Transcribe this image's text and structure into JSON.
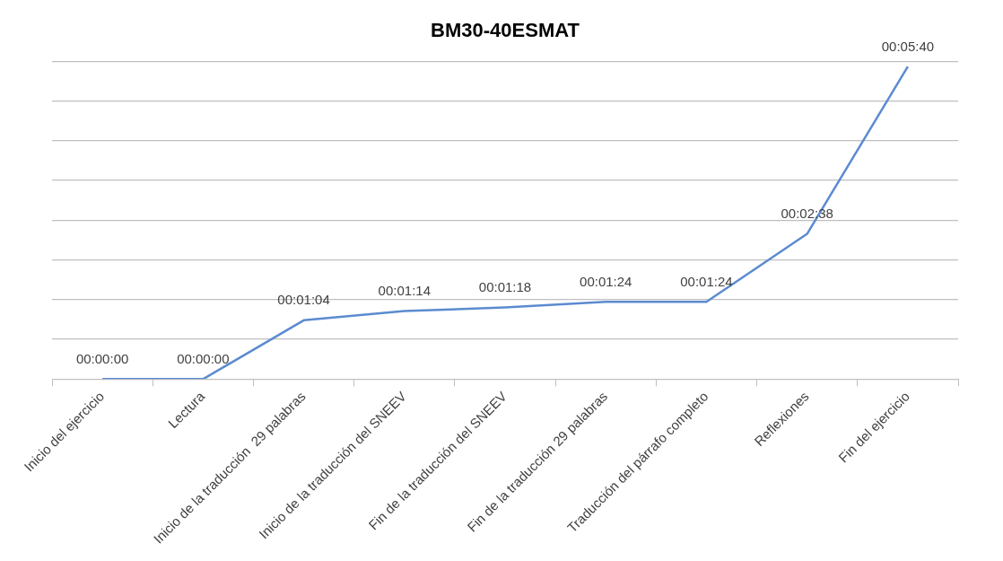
{
  "chart_data": {
    "type": "line",
    "title": "BM30-40ESMAT",
    "categories": [
      "Inicio del ejercicio",
      "Lectura",
      "Inicio de la traducción  29 palabras",
      "Inicio de la traducción del SNEEV",
      "Fin de la traducción del SNEEV",
      "Fin de la traducción 29 palabras",
      "Traducción del párrafo completo",
      "Reflexiones",
      "Fin del ejercicio"
    ],
    "series": [
      {
        "color": "#5b8bd0",
        "values": [
          0,
          0,
          64,
          74,
          78,
          84,
          84,
          158,
          340
        ],
        "value_labels": [
          "00:00:00",
          "00:00:00",
          "00:01:04",
          "00:01:14",
          "00:01:18",
          "00:01:24",
          "00:01:24",
          "00:02:38",
          "00:05:40"
        ]
      }
    ],
    "ylim": [
      0,
      345.6
    ],
    "yticks": [
      {
        "value": 0,
        "label": null
      },
      {
        "value": 43.2,
        "label": null
      },
      {
        "value": 86.4,
        "label": null
      },
      {
        "value": 129.6,
        "label": null
      },
      {
        "value": 172.8,
        "label": null
      },
      {
        "value": 216,
        "label": null
      },
      {
        "value": 259.2,
        "label": null
      },
      {
        "value": 302.4,
        "label": null
      },
      {
        "value": 345.6,
        "label": null
      }
    ],
    "tick_labels": "x",
    "grid": "y",
    "legend": false,
    "marker": "none",
    "line_style": "solid"
  }
}
